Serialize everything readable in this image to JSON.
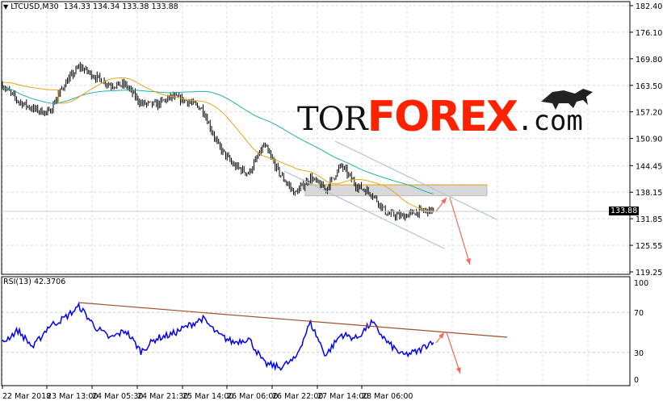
{
  "header": {
    "symbol_arrow_icon": "triangle-down-icon",
    "symbol": "LTCUSD,M30",
    "ohlc": "134.33 134.34 133.38 133.88"
  },
  "rsi_panel": {
    "label": "RSI(13) 42.3706"
  },
  "logo": {
    "tor": "TOR",
    "forex": "FOREX",
    "com": ".com",
    "icon": "bull-icon"
  },
  "current_price": "133.88",
  "colors": {
    "bars": "#000000",
    "ma_fast": "#e6a817",
    "ma_slow": "#20b2aa",
    "rsi": "#0000ff",
    "trendline": "#a0522d",
    "arrows": "#f26b5b",
    "channel": "#b0c4de"
  },
  "chart_data": [
    {
      "type": "bar",
      "title": "",
      "x_ticks": [
        "22 Mar 2018",
        "23 Mar 13:00",
        "24 Mar 05:30",
        "24 Mar 21:30",
        "25 Mar 14:00",
        "26 Mar 06:00",
        "26 Mar 22:00",
        "27 Mar 14:00",
        "28 Mar 06:00"
      ],
      "y_ticks": [
        "182.40",
        "176.10",
        "169.80",
        "163.50",
        "157.20",
        "150.90",
        "144.45",
        "138.15",
        "131.85",
        "125.55",
        "119.25"
      ],
      "ylim": [
        119.25,
        182.4
      ],
      "approx_close_path": [
        163.6,
        159.8,
        157.9,
        156.9,
        163.6,
        168.0,
        165.6,
        163.6,
        163.6,
        159.2,
        158.9,
        160.8,
        159.8,
        157.9,
        149.3,
        144.5,
        142.6,
        149.3,
        142.6,
        137.8,
        141.6,
        138.8,
        144.5,
        139.7,
        137.8,
        133.0,
        132.4,
        133.6,
        133.88
      ],
      "resistance_zone": [
        137.3,
        139.9
      ]
    },
    {
      "type": "line",
      "title": "RSI(13)",
      "y_ticks": [
        "100",
        "70",
        "30",
        "0"
      ],
      "ylim": [
        0,
        100
      ],
      "approx_values": [
        40,
        52,
        35,
        56,
        64,
        76,
        56,
        44,
        52,
        31,
        44,
        48,
        56,
        64,
        48,
        40,
        44,
        19,
        15,
        23,
        60,
        27,
        48,
        44,
        60,
        40,
        27,
        31,
        42.37
      ]
    }
  ]
}
